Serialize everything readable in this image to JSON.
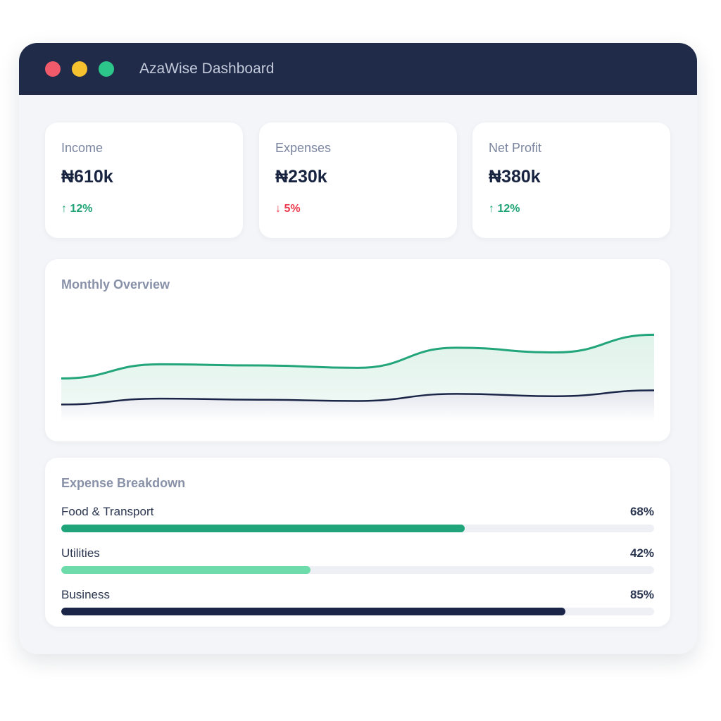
{
  "window": {
    "title": "AzaWise Dashboard",
    "controls": {
      "close": "#f05a6a",
      "minimize": "#f6c12f",
      "maximize": "#2cc68a"
    }
  },
  "stats": [
    {
      "label": "Income",
      "value": "₦610k",
      "change": "↑ 12%",
      "trend": "up",
      "color": "#1fa374"
    },
    {
      "label": "Expenses",
      "value": "₦230k",
      "change": "↓ 5%",
      "trend": "down",
      "color": "#ec3a4c"
    },
    {
      "label": "Net Profit",
      "value": "₦380k",
      "change": "↑ 12%",
      "trend": "up",
      "color": "#1fa374"
    }
  ],
  "overview": {
    "title": "Monthly Overview"
  },
  "chart_data": {
    "type": "area",
    "title": "Monthly Overview",
    "x": [
      1,
      2,
      3,
      4,
      5,
      6,
      7
    ],
    "series": [
      {
        "values": [
          36,
          48,
          47,
          45,
          62,
          58,
          73
        ],
        "color": "#22a57a"
      },
      {
        "values": [
          14,
          19,
          18,
          17,
          23,
          21,
          26
        ],
        "color": "#1a2547"
      }
    ],
    "ylim": [
      0,
      100
    ],
    "grid": false,
    "axes": false
  },
  "breakdown": {
    "title": "Expense Breakdown",
    "items": [
      {
        "label": "Food & Transport",
        "percent": "68%",
        "value": 68,
        "color": "#20a57b"
      },
      {
        "label": "Utilities",
        "percent": "42%",
        "value": 42,
        "color": "#6ddcaa"
      },
      {
        "label": "Business",
        "percent": "85%",
        "value": 85,
        "color": "#1a2547"
      }
    ]
  }
}
